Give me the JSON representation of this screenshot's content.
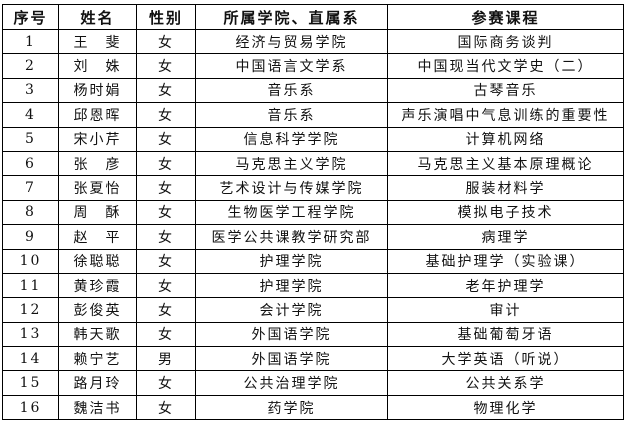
{
  "headers": [
    "序号",
    "姓名",
    "性别",
    "所属学院、直属系",
    "参赛课程"
  ],
  "rows": [
    [
      "1",
      "王　斐",
      "女",
      "经济与贸易学院",
      "国际商务谈判"
    ],
    [
      "2",
      "刘　姝",
      "女",
      "中国语言文学系",
      "中国现当代文学史（二）"
    ],
    [
      "3",
      "杨时娟",
      "女",
      "音乐系",
      "古琴音乐"
    ],
    [
      "4",
      "邱恩晖",
      "女",
      "音乐系",
      "声乐演唱中气息训练的重要性"
    ],
    [
      "5",
      "宋小芹",
      "女",
      "信息科学学院",
      "计算机网络"
    ],
    [
      "6",
      "张　彦",
      "女",
      "马克思主义学院",
      "马克思主义基本原理概论"
    ],
    [
      "7",
      "张夏怡",
      "女",
      "艺术设计与传媒学院",
      "服装材料学"
    ],
    [
      "8",
      "周　酥",
      "女",
      "生物医学工程学院",
      "模拟电子技术"
    ],
    [
      "9",
      "赵　平",
      "女",
      "医学公共课教学研究部",
      "病理学"
    ],
    [
      "10",
      "徐聪聪",
      "女",
      "护理学院",
      "基础护理学（实验课）"
    ],
    [
      "11",
      "黄珍霞",
      "女",
      "护理学院",
      "老年护理学"
    ],
    [
      "12",
      "彭俊英",
      "女",
      "会计学院",
      "审计"
    ],
    [
      "13",
      "韩天歌",
      "女",
      "外国语学院",
      "基础葡萄牙语"
    ],
    [
      "14",
      "赖宁艺",
      "男",
      "外国语学院",
      "大学英语（听说）"
    ],
    [
      "15",
      "路月玲",
      "女",
      "公共治理学院",
      "公共关系学"
    ],
    [
      "16",
      "魏洁书",
      "女",
      "药学院",
      "物理化学"
    ]
  ]
}
